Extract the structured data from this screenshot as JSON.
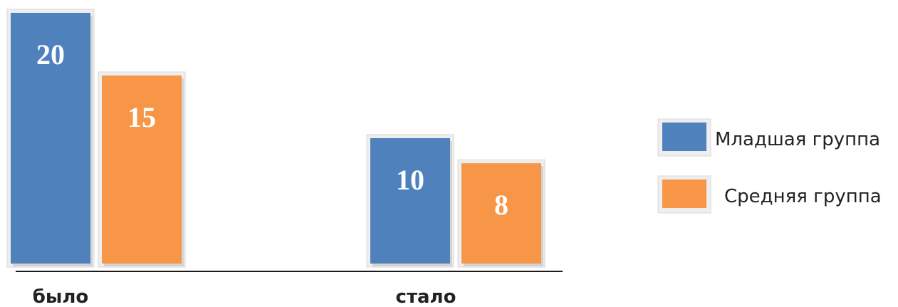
{
  "chart_data": {
    "type": "bar",
    "title": "",
    "xlabel": "",
    "ylabel": "",
    "categories": [
      "было",
      "стало"
    ],
    "series": [
      {
        "name": "Младшая группа",
        "values": [
          20,
          10
        ],
        "color": "#4F81BD"
      },
      {
        "name": "Средняя группа",
        "values": [
          15,
          8
        ],
        "color": "#F79646"
      }
    ],
    "ylim": [
      0,
      20
    ],
    "grid": false,
    "legend_position": "right",
    "data_labels": true
  }
}
